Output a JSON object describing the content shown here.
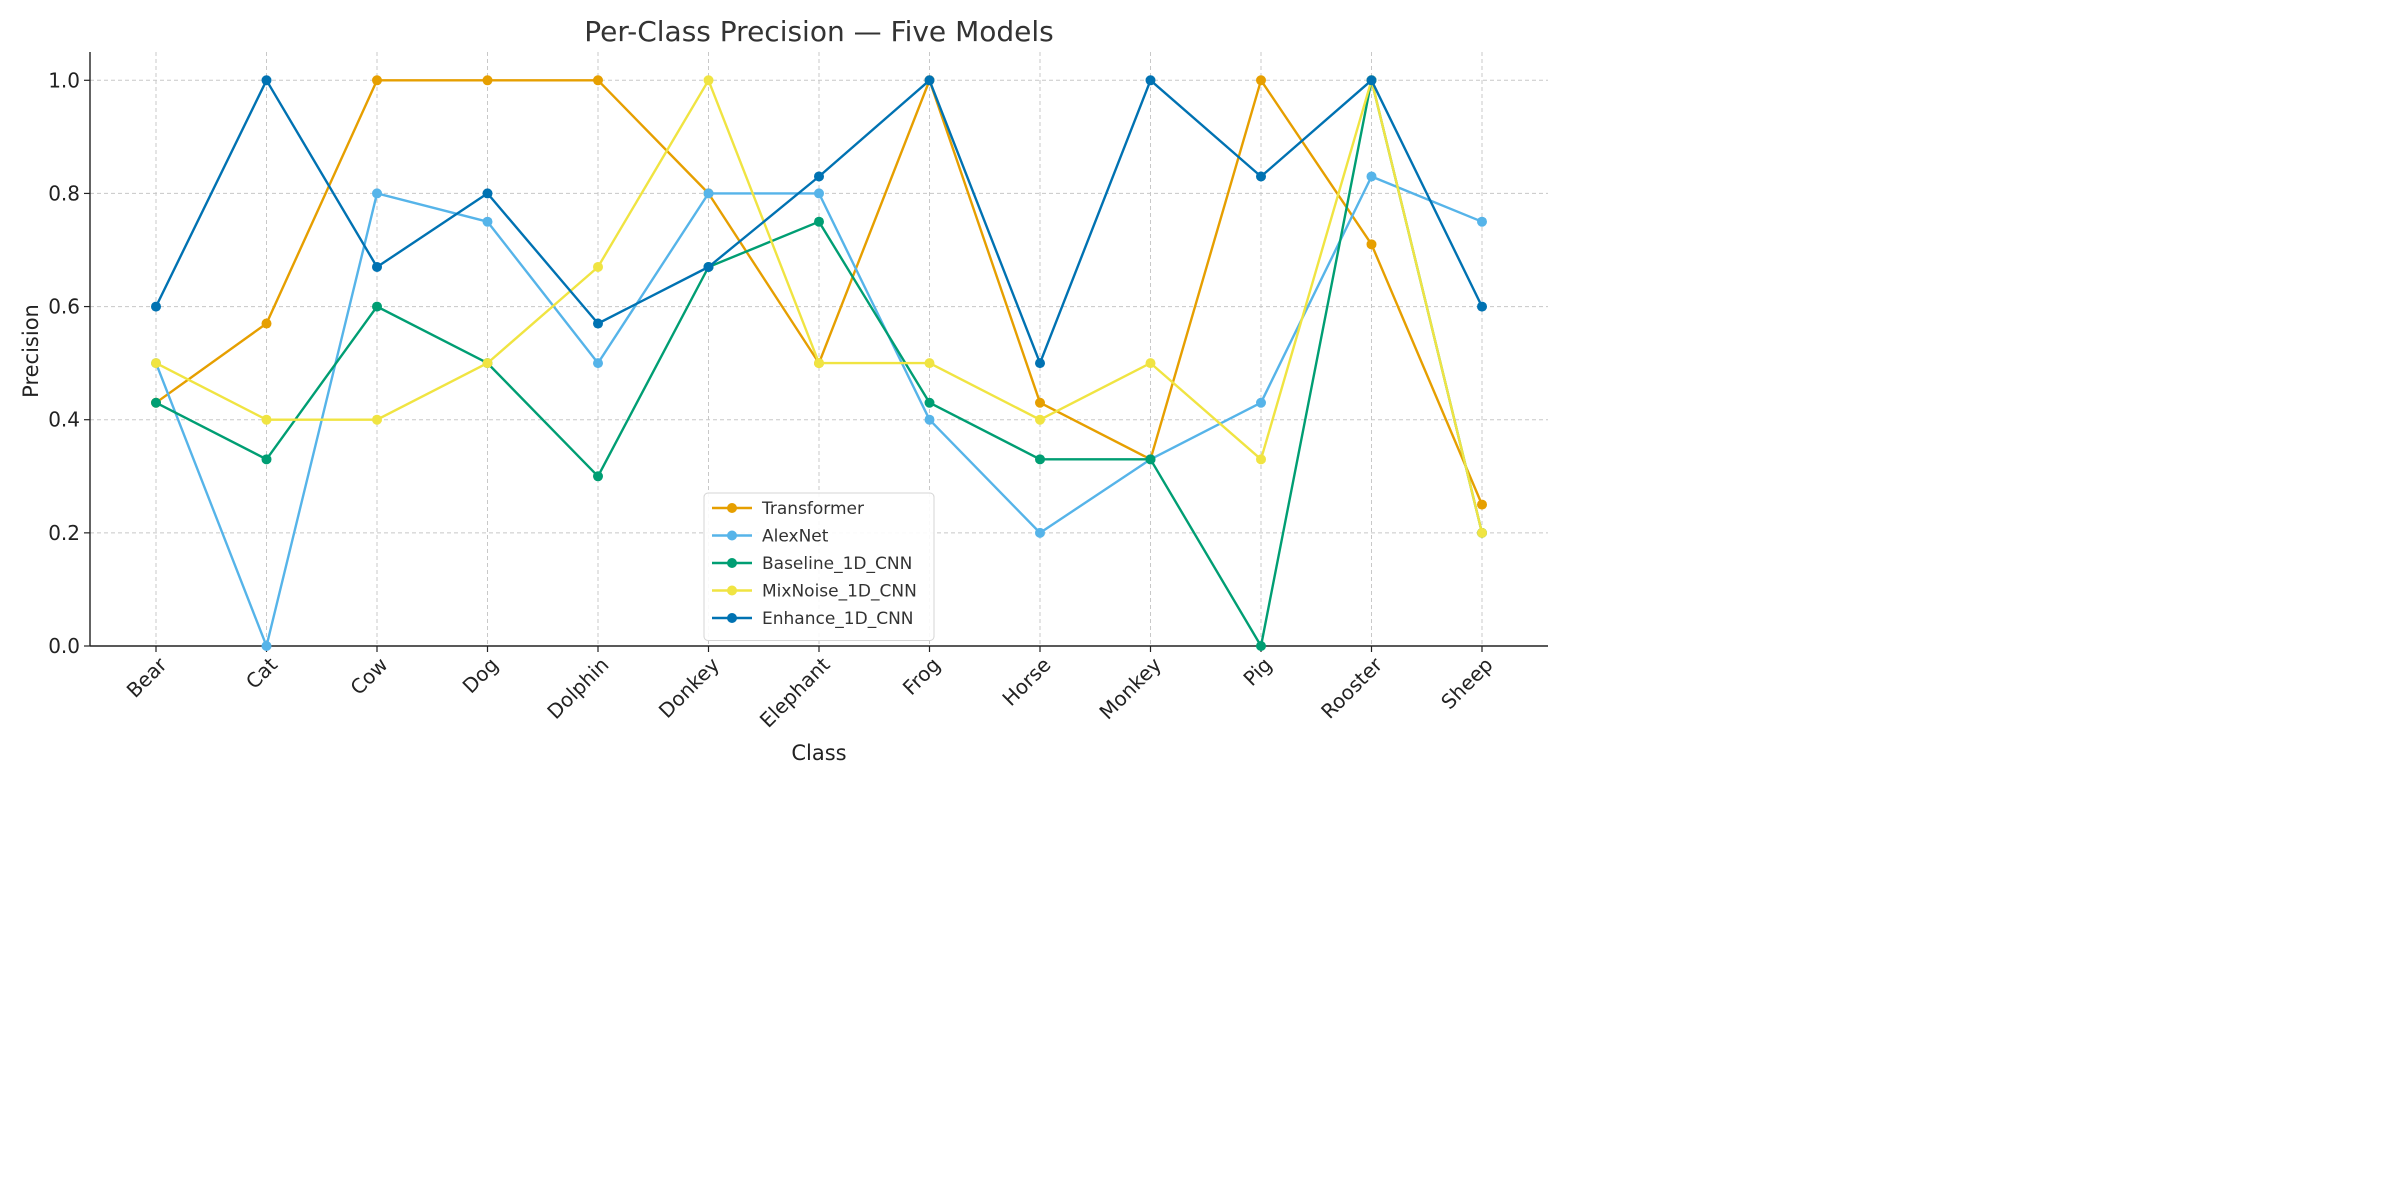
{
  "chart_data": {
    "type": "line",
    "title": "Per-Class Precision — Five Models",
    "xlabel": "Class",
    "ylabel": "Precision",
    "categories": [
      "Bear",
      "Cat",
      "Cow",
      "Dog",
      "Dolphin",
      "Donkey",
      "Elephant",
      "Frog",
      "Horse",
      "Monkey",
      "Pig",
      "Rooster",
      "Sheep"
    ],
    "ylim": [
      0,
      1.05
    ],
    "yticks": [
      0.0,
      0.2,
      0.4,
      0.6,
      0.8,
      1.0
    ],
    "ytick_labels": [
      "0.0",
      "0.2",
      "0.4",
      "0.6",
      "0.8",
      "1.0"
    ],
    "grid": true,
    "legend_position": "lower-center",
    "series": [
      {
        "name": "Transformer",
        "color": "#E69F00",
        "values": [
          0.43,
          0.57,
          1.0,
          1.0,
          1.0,
          0.8,
          0.5,
          1.0,
          0.43,
          0.33,
          1.0,
          0.71,
          0.25
        ]
      },
      {
        "name": "AlexNet",
        "color": "#56B4E9",
        "values": [
          0.5,
          0.0,
          0.8,
          0.75,
          0.5,
          0.8,
          0.8,
          0.4,
          0.2,
          0.33,
          0.43,
          0.83,
          0.75
        ]
      },
      {
        "name": "Baseline_1D_CNN",
        "color": "#009E73",
        "values": [
          0.43,
          0.33,
          0.6,
          0.5,
          0.3,
          0.67,
          0.75,
          0.43,
          0.33,
          0.33,
          0.0,
          1.0,
          0.2
        ]
      },
      {
        "name": "MixNoise_1D_CNN",
        "color": "#F0E442",
        "values": [
          0.5,
          0.4,
          0.4,
          0.5,
          0.67,
          1.0,
          0.5,
          0.5,
          0.4,
          0.5,
          0.33,
          1.0,
          0.2
        ]
      },
      {
        "name": "Enhance_1D_CNN",
        "color": "#0072B2",
        "values": [
          0.6,
          1.0,
          0.67,
          0.8,
          0.57,
          0.67,
          0.83,
          1.0,
          0.5,
          1.0,
          0.83,
          1.0,
          0.6
        ]
      }
    ]
  }
}
